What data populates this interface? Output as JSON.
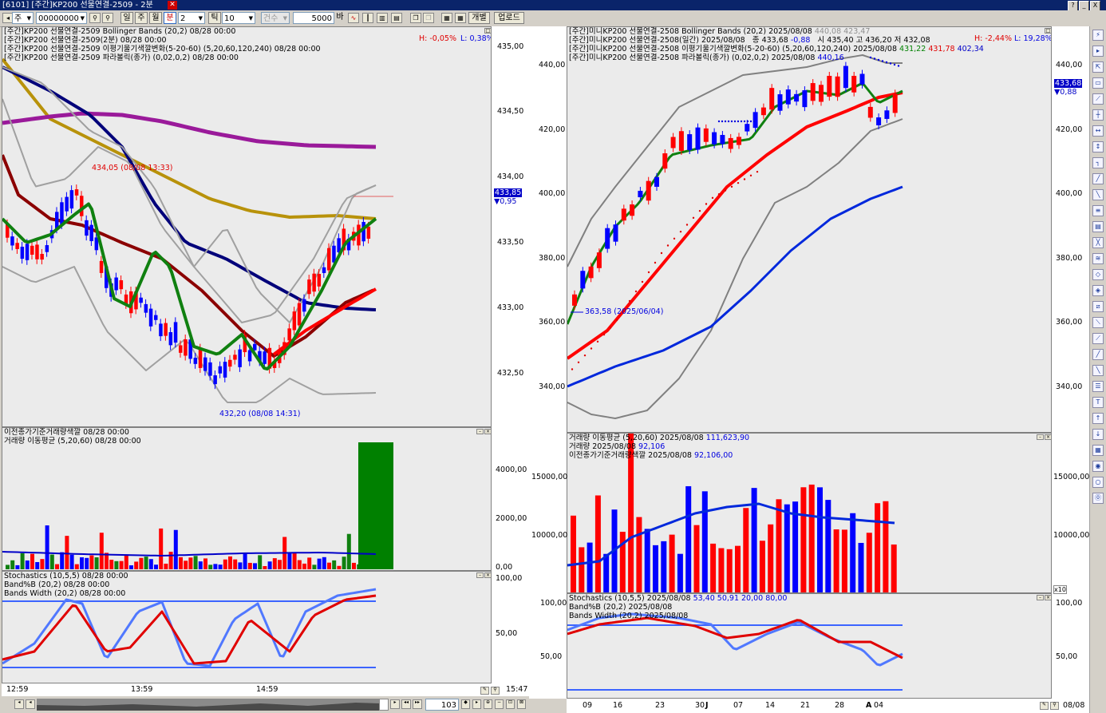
{
  "titlebar": {
    "title": "[6101] [주간]KP200 선물연결-2509 - 2분",
    "help": "?",
    "minimize": "_",
    "close": "X"
  },
  "toolbar": {
    "period_type": "주",
    "code": "00000000",
    "period_buttons": [
      "일",
      "주",
      "월",
      "분"
    ],
    "interval_value": "2",
    "tick_label": "틱",
    "tick_value": "10",
    "count_label": "건수",
    "count_value": "5000",
    "count_unit": "바",
    "individual_label": "개별",
    "upload_label": "업로드"
  },
  "left_chart": {
    "legend": [
      "[주간]KP200 선물연결-2509 Bollinger Bands  (20,2) 08/28 00:00",
      "[주간]KP200 선물연결-2509(2분) 08/28 00:00",
      "[주간]KP200 선물연결-2509 이평기울기색깔변화(5-20-60)  (5,20,60,120,240) 08/28 00:00",
      "[주간]KP200 선물연결-2509 파라볼릭(종가)  (0,02,0,2) 08/28 00:00"
    ],
    "high_pct": "H: -0,05%",
    "low_pct": "L: 0,38%",
    "price_ticks": [
      "435,00",
      "434,50",
      "434,00",
      "433,50",
      "433,00",
      "432,50"
    ],
    "current_price": "433,85",
    "change": "▼0,95",
    "high_annot": "434,05 (08/08 13:33)",
    "low_annot": "432,20 (08/08 14:31)",
    "volume_legend": [
      "이전종가기준거래량색깔  08/28 00:00",
      "거래량 이동평균  (5,20,60) 08/28 00:00"
    ],
    "volume_ticks": [
      "4000,00",
      "2000,00",
      "0,00"
    ],
    "stoch_legend": [
      "Stochastics  (10,5,5) 08/28 00:00",
      "Band%B  (20,2) 08/28 00:00",
      "Bands Width  (20,2) 08/28 00:00"
    ],
    "stoch_ticks": [
      "100,00",
      "50,00"
    ],
    "time_ticks": [
      "12:59",
      "13:59",
      "14:59"
    ],
    "last_time": "15:47",
    "scroll_value": "103"
  },
  "right_chart": {
    "legend": [
      "[주간]미니KP200 선물연결-2508 Bollinger Bands  (20,2) 2025/08/08",
      "[주간]미니KP200 선물연결-2508(일간) 2025/08/08",
      "[주간]미니KP200 선물연결-2508 이평기울기색깔변화(5-20-60)  (5,20,60,120,240) 2025/08/08",
      "[주간]미니KP200 선물연결-2508 파라볼릭(종가)  (0,02,0,2) 2025/08/08"
    ],
    "bb_values": "440,08 423,47",
    "quote": {
      "close_label": "종",
      "close": "433,68",
      "change": "-0,88",
      "open_label": "시",
      "open": "435,40",
      "high_label": "고",
      "high": "436,20",
      "low_label": "저",
      "low": "432,08"
    },
    "ma_values": {
      "a": "431,22",
      "b": "431,78",
      "c": "402,34"
    },
    "parabolic_value": "440,16",
    "high_pct": "H: -2,44%",
    "low_pct": "L: 19,28%",
    "price_ticks": [
      "440,00",
      "420,00",
      "400,00",
      "380,00",
      "360,00",
      "340,00"
    ],
    "current_price": "433,68",
    "change": "▼0,88",
    "low_annot": "363,58 (2025/06/04)",
    "volume_legend": [
      "거래량 이동평균  (5,20,60) 2025/08/08",
      "거래량  2025/08/08",
      "이전종가기준거래량색깔  2025/08/08"
    ],
    "volume_legend_values": [
      "111,623,90",
      "92,106",
      "92,106,00"
    ],
    "volume_ticks": [
      "15000,00",
      "10000,00"
    ],
    "volume_multiplier": "x10",
    "stoch_legend": [
      "Stochastics  (10,5,5) 2025/08/08",
      "Band%B  (20,2) 2025/08/08",
      "Bands Width  (20,2) 2025/08/08"
    ],
    "stoch_values": "53,40 50,91 20,00 80,00",
    "stoch_ticks": [
      "100,00",
      "50,00"
    ],
    "date_ticks": [
      "09",
      "16",
      "23",
      "30",
      "J",
      "07",
      "14",
      "21",
      "28",
      "A",
      "04"
    ],
    "last_date": "08/08"
  },
  "colors": {
    "bull": "#ff0000",
    "bear": "#0000ff",
    "bb": "#909090",
    "ma5": "#008000",
    "ma20": "#ff0000",
    "ma60": "#0000c8",
    "pane_bg": "#ebebeb"
  }
}
